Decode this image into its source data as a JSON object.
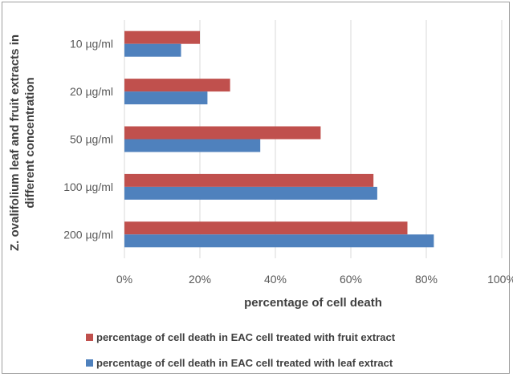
{
  "chart_data": {
    "type": "bar",
    "orientation": "horizontal",
    "categories": [
      "10 µg/ml",
      "20 µg/ml",
      "50 µg/ml",
      "100 µg/ml",
      "200 µg/ml"
    ],
    "series": [
      {
        "name": "percentage of cell death in EAC cell treated with fruit extract",
        "color": "#c0504d",
        "values": [
          20,
          28,
          52,
          66,
          75
        ]
      },
      {
        "name": "percentage of cell death in EAC cell treated with leaf extract",
        "color": "#4f81bd",
        "values": [
          15,
          22,
          36,
          67,
          82
        ]
      }
    ],
    "xticks": [
      "0%",
      "20%",
      "40%",
      "60%",
      "80%",
      "100%"
    ],
    "xlim": [
      0,
      100
    ],
    "xlabel": "percentage of cell death",
    "ylabel_lines": [
      "Z. ovalifolium leaf and fruit extracts in",
      "different concentration"
    ],
    "grid": true,
    "legend_position": "bottom"
  }
}
